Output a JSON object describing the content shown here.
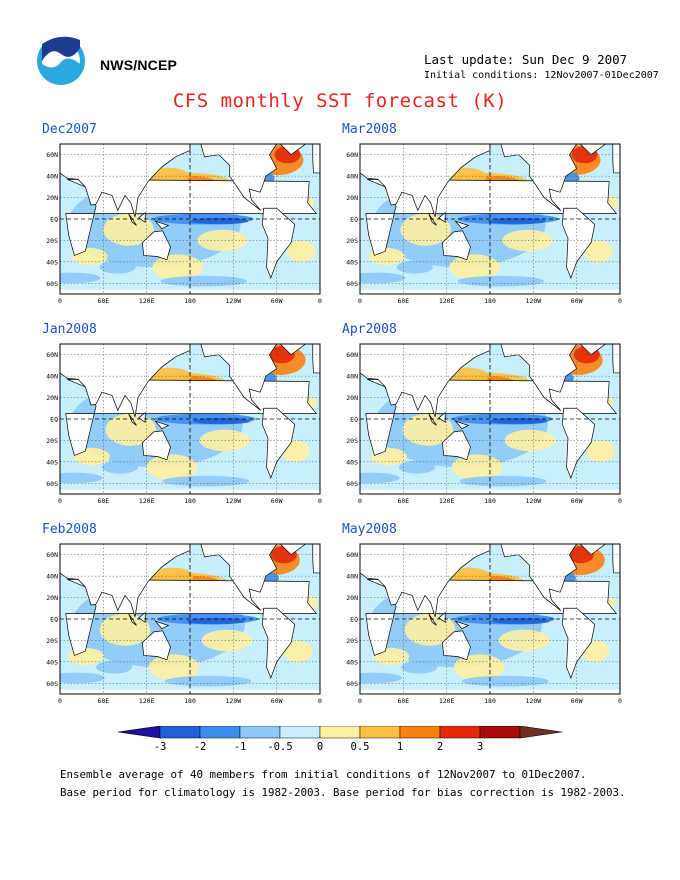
{
  "header": {
    "agency": "NWS/NCEP",
    "last_update": "Last update: Sun Dec  9 2007",
    "initial_conditions": "Initial conditions: 12Nov2007-01Dec2007",
    "title": "CFS monthly SST forecast (K)"
  },
  "map_axes": {
    "lat_labels": [
      "60N",
      "40N",
      "20N",
      "EQ",
      "20S",
      "40S",
      "60S"
    ],
    "lon_labels": [
      "0",
      "60E",
      "120E",
      "180",
      "120W",
      "60W",
      "0"
    ]
  },
  "panels": [
    {
      "month": "Dec2007"
    },
    {
      "month": "Mar2008"
    },
    {
      "month": "Jan2008"
    },
    {
      "month": "Apr2008"
    },
    {
      "month": "Feb2008"
    },
    {
      "month": "May2008"
    }
  ],
  "colorbar": {
    "labels": [
      "-3",
      "-2",
      "-1",
      "-0.5",
      "0",
      "0.5",
      "1",
      "2",
      "3"
    ],
    "colors": [
      "#1f0fa0",
      "#1f5fd8",
      "#3d8cf0",
      "#8cc8f8",
      "#c8f0fc",
      "#fff0a0",
      "#fcc040",
      "#fc8010",
      "#e42808",
      "#a80808",
      "#703020"
    ]
  },
  "footer": {
    "line1": "Ensemble average of 40 members from initial conditions of 12Nov2007 to 01Dec2007.",
    "line2": "Base period for climatology is 1982-2003. Base period for bias correction is 1982-2003."
  }
}
